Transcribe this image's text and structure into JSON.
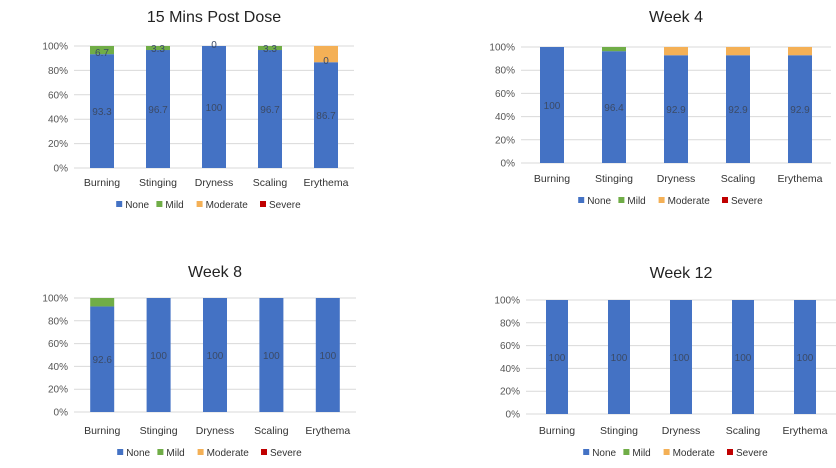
{
  "colors": {
    "None": "#4472c4",
    "Mild": "#70ad47",
    "Moderate": "#f4b056",
    "Severe": "#c00000"
  },
  "chart_data": [
    {
      "type": "bar",
      "stacked": true,
      "title": "15 Mins Post Dose",
      "categories": [
        "Burning",
        "Stinging",
        "Dryness",
        "Scaling",
        "Erythema"
      ],
      "ylim": [
        0,
        100
      ],
      "y_ticks": [
        "0%",
        "20%",
        "40%",
        "60%",
        "80%",
        "100%"
      ],
      "legend": "bottom",
      "series": [
        {
          "name": "None",
          "values": [
            93.3,
            96.7,
            100,
            96.7,
            86.7
          ]
        },
        {
          "name": "Mild",
          "values": [
            6.7,
            3.3,
            0,
            3.3,
            0
          ]
        },
        {
          "name": "Moderate",
          "values": [
            0,
            0,
            0,
            0,
            13.3
          ]
        },
        {
          "name": "Severe",
          "values": [
            0,
            0,
            0,
            0,
            0
          ]
        }
      ],
      "data_labels": [
        {
          "category": 0,
          "series": "None",
          "text": "93.3"
        },
        {
          "category": 0,
          "series": "Mild",
          "text": "6.7"
        },
        {
          "category": 1,
          "series": "None",
          "text": "96.7"
        },
        {
          "category": 1,
          "series": "Mild",
          "text": "3.3"
        },
        {
          "category": 2,
          "series": "None",
          "text": "100"
        },
        {
          "category": 2,
          "series": "Mild",
          "text": "0"
        },
        {
          "category": 3,
          "series": "None",
          "text": "96.7"
        },
        {
          "category": 3,
          "series": "Mild",
          "text": "3.3"
        },
        {
          "category": 4,
          "series": "None",
          "text": "86.7"
        },
        {
          "category": 4,
          "series": "Mild",
          "text": "0"
        }
      ]
    },
    {
      "type": "bar",
      "stacked": true,
      "title": "Week 4",
      "categories": [
        "Burning",
        "Stinging",
        "Dryness",
        "Scaling",
        "Erythema"
      ],
      "ylim": [
        0,
        100
      ],
      "y_ticks": [
        "0%",
        "20%",
        "40%",
        "60%",
        "80%",
        "100%"
      ],
      "legend": "bottom",
      "series": [
        {
          "name": "None",
          "values": [
            100,
            96.4,
            92.9,
            92.9,
            92.9
          ]
        },
        {
          "name": "Mild",
          "values": [
            0,
            3.6,
            0,
            0,
            0
          ]
        },
        {
          "name": "Moderate",
          "values": [
            0,
            0,
            7.1,
            7.1,
            7.1
          ]
        },
        {
          "name": "Severe",
          "values": [
            0,
            0,
            0,
            0,
            0
          ]
        }
      ],
      "data_labels": [
        {
          "category": 0,
          "series": "None",
          "text": "100"
        },
        {
          "category": 1,
          "series": "None",
          "text": "96.4"
        },
        {
          "category": 2,
          "series": "None",
          "text": "92.9"
        },
        {
          "category": 3,
          "series": "None",
          "text": "92.9"
        },
        {
          "category": 4,
          "series": "None",
          "text": "92.9"
        }
      ]
    },
    {
      "type": "bar",
      "stacked": true,
      "title": "Week 8",
      "categories": [
        "Burning",
        "Stinging",
        "Dryness",
        "Scaling",
        "Erythema"
      ],
      "ylim": [
        0,
        100
      ],
      "y_ticks": [
        "0%",
        "20%",
        "40%",
        "60%",
        "80%",
        "100%"
      ],
      "legend": "bottom",
      "series": [
        {
          "name": "None",
          "values": [
            92.6,
            100,
            100,
            100,
            100
          ]
        },
        {
          "name": "Mild",
          "values": [
            7.4,
            0,
            0,
            0,
            0
          ]
        },
        {
          "name": "Moderate",
          "values": [
            0,
            0,
            0,
            0,
            0
          ]
        },
        {
          "name": "Severe",
          "values": [
            0,
            0,
            0,
            0,
            0
          ]
        }
      ],
      "data_labels": [
        {
          "category": 0,
          "series": "None",
          "text": "92.6"
        },
        {
          "category": 1,
          "series": "None",
          "text": "100"
        },
        {
          "category": 2,
          "series": "None",
          "text": "100"
        },
        {
          "category": 3,
          "series": "None",
          "text": "100"
        },
        {
          "category": 4,
          "series": "None",
          "text": "100"
        }
      ]
    },
    {
      "type": "bar",
      "stacked": true,
      "title": "Week 12",
      "categories": [
        "Burning",
        "Stinging",
        "Dryness",
        "Scaling",
        "Erythema"
      ],
      "ylim": [
        0,
        100
      ],
      "y_ticks": [
        "0%",
        "20%",
        "40%",
        "60%",
        "80%",
        "100%"
      ],
      "legend": "bottom",
      "series": [
        {
          "name": "None",
          "values": [
            100,
            100,
            100,
            100,
            100
          ]
        },
        {
          "name": "Mild",
          "values": [
            0,
            0,
            0,
            0,
            0
          ]
        },
        {
          "name": "Moderate",
          "values": [
            0,
            0,
            0,
            0,
            0
          ]
        },
        {
          "name": "Severe",
          "values": [
            0,
            0,
            0,
            0,
            0
          ]
        }
      ],
      "data_labels": [
        {
          "category": 0,
          "series": "None",
          "text": "100"
        },
        {
          "category": 1,
          "series": "None",
          "text": "100"
        },
        {
          "category": 2,
          "series": "None",
          "text": "100"
        },
        {
          "category": 3,
          "series": "None",
          "text": "100"
        },
        {
          "category": 4,
          "series": "None",
          "text": "100"
        }
      ]
    }
  ]
}
